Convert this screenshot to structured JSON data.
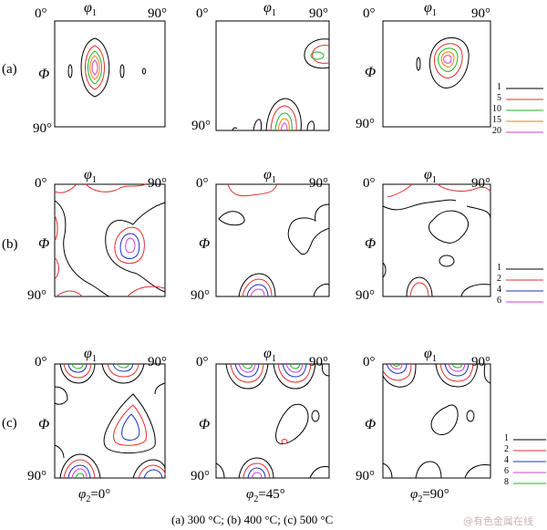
{
  "axes": {
    "x_start": "0°",
    "x_end": "90°",
    "y_end": "90°",
    "x_symbol": "φ",
    "x_subscript": "1",
    "y_symbol": "Φ"
  },
  "rows": [
    {
      "label": "(a)",
      "legend": [
        "1",
        "5",
        "10",
        "15",
        "20"
      ]
    },
    {
      "label": "(b)",
      "legend": [
        "1",
        "2",
        "4",
        "6"
      ]
    },
    {
      "label": "(c)",
      "legend": [
        "1",
        "2",
        "4",
        "6",
        "8"
      ]
    }
  ],
  "columns": [
    {
      "phi2_symbol": "φ",
      "phi2_subscript": "2",
      "phi2_value": "=0°"
    },
    {
      "phi2_symbol": "φ",
      "phi2_subscript": "2",
      "phi2_value": "=45°"
    },
    {
      "phi2_symbol": "φ",
      "phi2_subscript": "2",
      "phi2_value": "=90°"
    }
  ],
  "caption": "(a) 300 °C; (b) 400 °C; (c) 500 °C",
  "watermark": "@有色金属在线",
  "colors": {
    "level_1": "#000000",
    "level_2": "#e03030",
    "level_3": "#20b020",
    "level_4": "#ff7f00",
    "level_5": "#d040d0",
    "level_blue": "#2030c0",
    "level_magenta": "#d040d0",
    "level_green": "#20b020"
  }
}
